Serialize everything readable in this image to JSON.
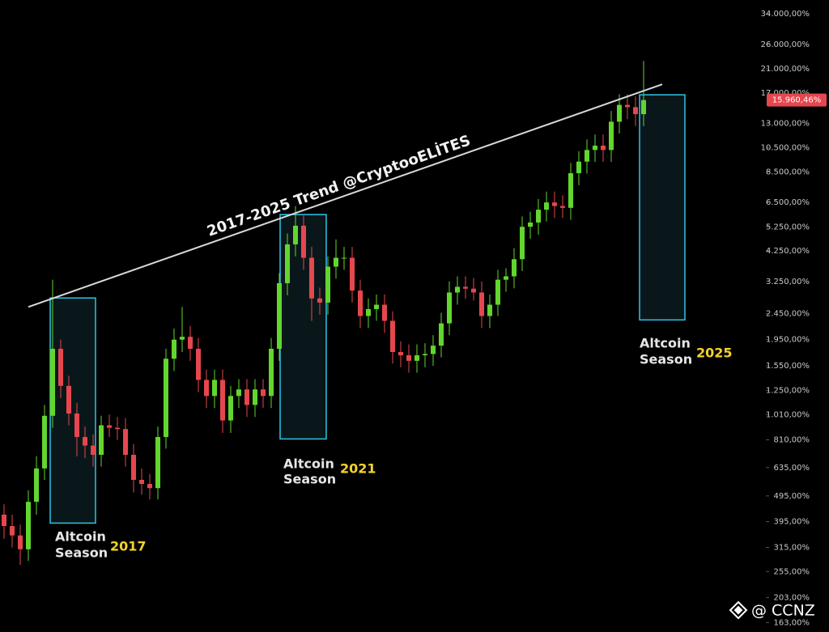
{
  "chart_data": {
    "type": "candlestick",
    "log_scale": true,
    "grid": false,
    "up_color": "#62d62e",
    "down_color": "#e5474f",
    "open": [
      420,
      380,
      350,
      310,
      470,
      630,
      1000,
      1800,
      1300,
      1020,
      830,
      770,
      710,
      920,
      900,
      890,
      710,
      570,
      550,
      530,
      830,
      1650,
      1950,
      2000,
      1800,
      1370,
      1190,
      1370,
      960,
      1190,
      1260,
      1100,
      1260,
      1190,
      1800,
      3200,
      4500,
      5300,
      4000,
      2800,
      2700,
      3700,
      4000,
      4000,
      3000,
      2400,
      2550,
      2650,
      2300,
      1750,
      1700,
      1620,
      1700,
      1720,
      1850,
      2250,
      2950,
      3100,
      3050,
      2950,
      2400,
      2650,
      3300,
      3400,
      3950,
      5250,
      5450,
      6100,
      6500,
      6300,
      6200,
      8400,
      9300,
      10300,
      10700,
      10300,
      13200,
      15300,
      15000,
      14100
    ],
    "high": [
      460,
      420,
      385,
      520,
      700,
      1100,
      3300,
      1950,
      1420,
      1120,
      910,
      850,
      1000,
      1010,
      990,
      980,
      780,
      630,
      600,
      910,
      1800,
      2150,
      2600,
      2200,
      1980,
      1500,
      1500,
      1500,
      1300,
      1380,
      1380,
      1380,
      1380,
      1980,
      3500,
      4950,
      6300,
      5800,
      4400,
      3080,
      4050,
      4700,
      4400,
      4400,
      3300,
      2800,
      2900,
      2900,
      2500,
      1920,
      1870,
      1870,
      1890,
      2030,
      2470,
      3250,
      3400,
      3400,
      3350,
      3250,
      2900,
      3600,
      3650,
      4350,
      5750,
      5990,
      6700,
      7150,
      7150,
      6930,
      9200,
      10200,
      11300,
      11800,
      11800,
      14500,
      16800,
      16800,
      16500,
      22500
    ],
    "low": [
      340,
      315,
      270,
      280,
      420,
      570,
      900,
      1170,
      920,
      700,
      690,
      640,
      640,
      830,
      810,
      640,
      510,
      500,
      480,
      480,
      750,
      1480,
      1750,
      1620,
      1230,
      1070,
      1070,
      860,
      860,
      1070,
      990,
      990,
      1070,
      1070,
      1620,
      2880,
      4050,
      3600,
      2300,
      2430,
      2430,
      3330,
      3600,
      2700,
      2160,
      2160,
      2300,
      2070,
      1580,
      1530,
      1460,
      1460,
      1530,
      1550,
      1670,
      2030,
      2650,
      2790,
      2750,
      2160,
      2160,
      2400,
      2970,
      3060,
      3560,
      4730,
      4900,
      5500,
      5670,
      5670,
      5580,
      7560,
      8370,
      9270,
      9270,
      9270,
      11900,
      13500,
      12700,
      12700
    ],
    "close": [
      380,
      350,
      310,
      470,
      630,
      1000,
      1800,
      1300,
      1020,
      830,
      770,
      710,
      920,
      900,
      890,
      710,
      570,
      550,
      530,
      830,
      1650,
      1950,
      2000,
      1800,
      1370,
      1190,
      1370,
      960,
      1190,
      1260,
      1100,
      1260,
      1190,
      1800,
      3200,
      4500,
      5300,
      4000,
      2800,
      2700,
      3700,
      4000,
      4000,
      3000,
      2400,
      2550,
      2650,
      2300,
      1750,
      1700,
      1620,
      1700,
      1720,
      1850,
      2250,
      2950,
      3100,
      3050,
      2950,
      2400,
      2650,
      3300,
      3400,
      3950,
      5250,
      5450,
      6100,
      6500,
      6300,
      6200,
      8400,
      9300,
      10300,
      10700,
      10300,
      13200,
      15300,
      15000,
      14100,
      15960.46
    ],
    "ylim": [
      38400,
      150
    ],
    "yticks": [
      {
        "value": 34000,
        "label": "34.000,00%"
      },
      {
        "value": 26000,
        "label": "26.000,00%"
      },
      {
        "value": 21000,
        "label": "21.000,00%"
      },
      {
        "value": 17000,
        "label": "17.000,00%"
      },
      {
        "value": 13000,
        "label": "13.000,00%"
      },
      {
        "value": 10500,
        "label": "10.500,00%"
      },
      {
        "value": 8500,
        "label": "8.500,00%"
      },
      {
        "value": 6500,
        "label": "6.500,00%"
      },
      {
        "value": 5250,
        "label": "5.250,00%"
      },
      {
        "value": 4250,
        "label": "4.250,00%"
      },
      {
        "value": 3250,
        "label": "3.250,00%"
      },
      {
        "value": 2450,
        "label": "2.450,00%"
      },
      {
        "value": 1950,
        "label": "1.950,00%"
      },
      {
        "value": 1550,
        "label": "1.550,00%"
      },
      {
        "value": 1250,
        "label": "1.250,00%"
      },
      {
        "value": 1010,
        "label": "1.010,00%"
      },
      {
        "value": 810,
        "label": "810,00%"
      },
      {
        "value": 635,
        "label": "635,00%"
      },
      {
        "value": 495,
        "label": "495,00%"
      },
      {
        "value": 395,
        "label": "395,00%"
      },
      {
        "value": 315,
        "label": "315,00%"
      },
      {
        "value": 255,
        "label": "255,00%"
      },
      {
        "value": 203,
        "label": "203,00%"
      },
      {
        "value": 163,
        "label": "163,00%"
      }
    ],
    "last_price": {
      "value": 15960.46,
      "label": "15.960,46%",
      "color": "#e5474f"
    },
    "trend_line": {
      "label": "2017-2025 Trend @CryptooELİTES",
      "x": [
        3.0,
        81.3
      ],
      "y": [
        2599,
        18330
      ],
      "color": "#d9d9d9"
    },
    "boxes": [
      {
        "x_range": [
          5.7,
          11.3
        ],
        "y_range": [
          2811,
          390
        ],
        "label_lines": [
          "Altcoin",
          "Season"
        ],
        "year": "2017"
      },
      {
        "x_range": [
          34.1,
          39.8
        ],
        "y_range": [
          5845,
          816
        ],
        "label_lines": [
          "Altcoin",
          "Season"
        ],
        "year": "2021"
      },
      {
        "x_range": [
          78.5,
          84.1
        ],
        "y_range": [
          16713,
          2319
        ],
        "label_lines": [
          "Altcoin",
          "Season"
        ],
        "year": "2025"
      }
    ],
    "box_color": "#2ec4e6",
    "watermark": "@ CCNZ"
  }
}
